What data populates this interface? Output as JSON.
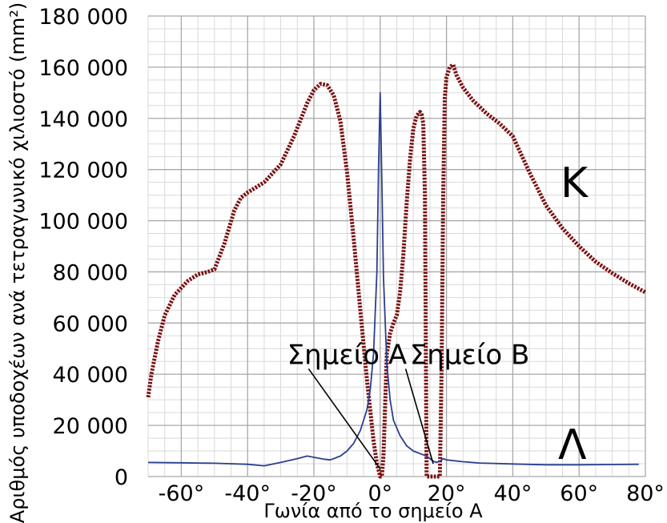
{
  "chart_data": {
    "type": "line",
    "title": "",
    "xlabel": "Γωνία από το σημείο Α",
    "ylabel": "Αριθμός υποδοχέων ανά τετραγωνικό χιλιοστό (mm²)",
    "xlim": [
      -70,
      80
    ],
    "ylim": [
      0,
      180000
    ],
    "grid": true,
    "x_ticks": [
      -60,
      -40,
      -20,
      0,
      20,
      40,
      60,
      80
    ],
    "x_tick_labels": [
      "-60°",
      "-40°",
      "-20°",
      "0°",
      "20°",
      "40°",
      "60°",
      "80°"
    ],
    "y_ticks": [
      0,
      20000,
      40000,
      60000,
      80000,
      100000,
      120000,
      140000,
      160000,
      180000
    ],
    "y_tick_labels": [
      "0",
      "20 000",
      "40 000",
      "60 000",
      "80 000",
      "100 000",
      "120 000",
      "140 000",
      "160 000",
      "180 000"
    ],
    "series": [
      {
        "name": "Κ",
        "color": "#7a1212",
        "style": "dotted",
        "x": [
          -70,
          -69,
          -67,
          -65,
          -62,
          -58,
          -55,
          -52,
          -50,
          -47,
          -44,
          -42,
          -40,
          -35,
          -30,
          -26,
          -22,
          -20,
          -18,
          -16,
          -14,
          -12,
          -10,
          -8,
          -6,
          -4,
          -2,
          -1,
          0,
          0.5,
          1,
          1.5,
          2,
          3,
          4,
          5,
          6,
          7,
          8,
          9,
          10,
          11,
          12,
          12.5,
          13,
          13.5,
          14,
          15,
          18,
          18.5,
          19,
          19.5,
          20,
          21,
          22,
          23,
          25,
          28,
          32,
          36,
          40,
          45,
          50,
          55,
          60,
          65,
          70,
          75,
          80
        ],
        "values": [
          31000,
          40000,
          53000,
          63000,
          71000,
          76500,
          79000,
          80000,
          81000,
          91000,
          104000,
          109000,
          111000,
          115000,
          122000,
          133000,
          146000,
          151000,
          153500,
          153000,
          149000,
          139000,
          119000,
          93000,
          65000,
          38000,
          14000,
          5000,
          0,
          0,
          8000,
          28000,
          48000,
          56000,
          60000,
          63000,
          72000,
          87000,
          107000,
          124000,
          136000,
          141000,
          142500,
          141500,
          138000,
          110000,
          0,
          0,
          0,
          40000,
          110000,
          148000,
          156000,
          160000,
          161000,
          157000,
          152000,
          147000,
          142000,
          138000,
          133000,
          119000,
          106000,
          97000,
          90000,
          84000,
          79500,
          75500,
          72000
        ]
      },
      {
        "name": "Λ",
        "color": "#2b3f8f",
        "style": "solid",
        "x": [
          -70,
          -60,
          -50,
          -40,
          -35,
          -30,
          -25,
          -22,
          -20,
          -17,
          -15,
          -12,
          -10,
          -8,
          -6,
          -4,
          -3,
          -2,
          -1,
          -0.5,
          0,
          0.5,
          1,
          2,
          3,
          4,
          6,
          8,
          10,
          12,
          14,
          15,
          16,
          17,
          18,
          19,
          20,
          25,
          30,
          40,
          50,
          60,
          70,
          78
        ],
        "values": [
          5500,
          5400,
          5200,
          4800,
          4200,
          5500,
          7000,
          8000,
          7500,
          6800,
          6500,
          8000,
          10000,
          13000,
          18000,
          26000,
          34000,
          48000,
          80000,
          120000,
          150000,
          115000,
          78000,
          44000,
          30000,
          22000,
          16000,
          12000,
          10000,
          9000,
          8000,
          7000,
          6000,
          5500,
          6000,
          7000,
          6500,
          5800,
          5300,
          4900,
          4600,
          4600,
          4700,
          4800
        ]
      }
    ],
    "series_labels": {
      "K": "Κ",
      "L": "Λ"
    },
    "annotations": [
      {
        "text": "Σημείο Α",
        "x": 0,
        "y": 3000,
        "text_x": -10,
        "text_y": 44000
      },
      {
        "text": "Σημείο Β",
        "x": 16,
        "y": 5000,
        "text_x": 27,
        "text_y": 44000
      }
    ]
  }
}
